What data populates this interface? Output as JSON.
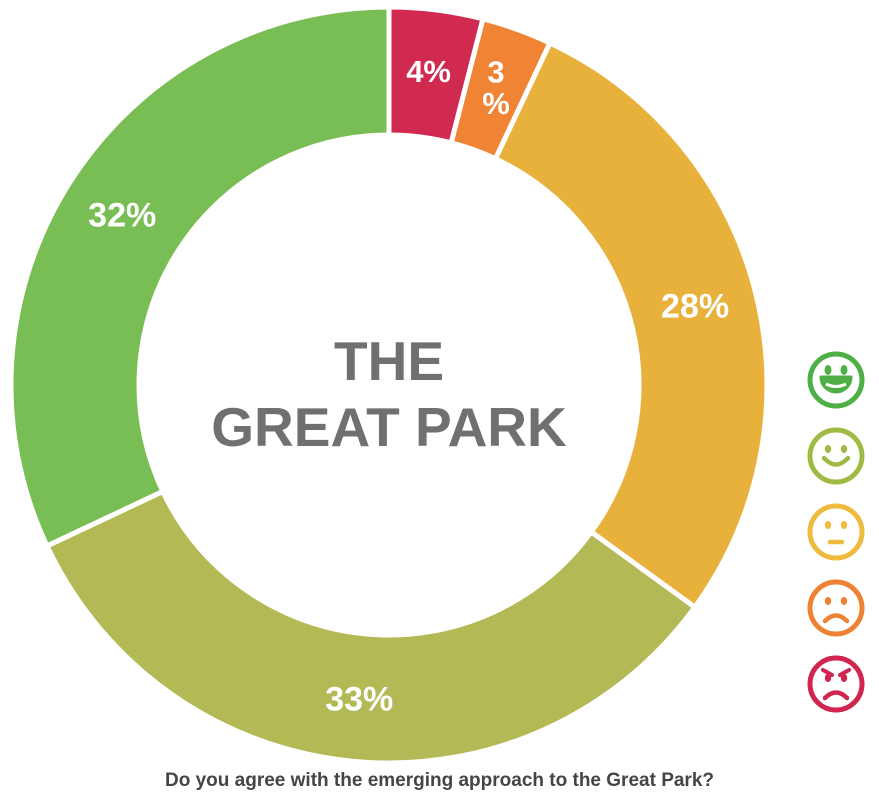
{
  "chart_data": {
    "type": "pie",
    "title": "THE GREAT PARK",
    "title_lines": [
      "THE",
      "GREAT PARK"
    ],
    "question": "Do you agree with the emerging approach to the Great Park?",
    "slices": [
      {
        "value": 4,
        "label_lines": [
          "4%"
        ],
        "color": "#d12a51",
        "face": "very-unhappy-face-icon"
      },
      {
        "value": 3,
        "label_lines": [
          "3",
          "%"
        ],
        "color": "#f08434",
        "face": "unhappy-face-icon"
      },
      {
        "value": 28,
        "label_lines": [
          "28%"
        ],
        "color": "#e8b13c",
        "face": "neutral-face-icon"
      },
      {
        "value": 33,
        "label_lines": [
          "33%"
        ],
        "color": "#b3ba55",
        "face": "smiling-face-icon"
      },
      {
        "value": 32,
        "label_lines": [
          "32%"
        ],
        "color": "#79bd55",
        "face": "very-happy-face-icon"
      }
    ],
    "legend": [
      {
        "face": "very-happy-face-icon",
        "color": "#4faf47"
      },
      {
        "face": "smiling-face-icon",
        "color": "#9fbb45"
      },
      {
        "face": "neutral-face-icon",
        "color": "#efbb3e"
      },
      {
        "face": "unhappy-face-icon",
        "color": "#ee8234"
      },
      {
        "face": "very-unhappy-face-icon",
        "color": "#d1244e"
      }
    ]
  }
}
